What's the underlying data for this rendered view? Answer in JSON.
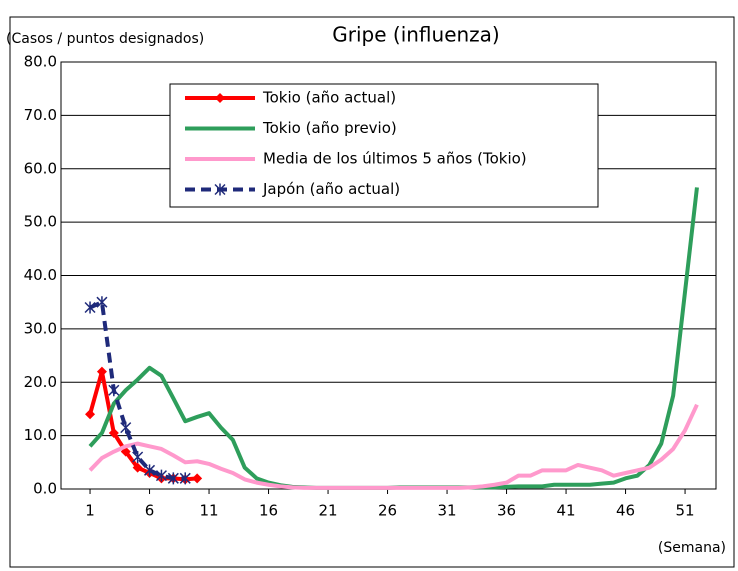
{
  "chart_data": {
    "type": "line",
    "title": "Gripe (influenza)",
    "y_label": "(Casos / puntos designados)",
    "x_label": "(Semana)",
    "x": [
      1,
      2,
      3,
      4,
      5,
      6,
      7,
      8,
      9,
      10,
      11,
      12,
      13,
      14,
      15,
      16,
      17,
      18,
      19,
      20,
      21,
      22,
      23,
      24,
      25,
      26,
      27,
      28,
      29,
      30,
      31,
      32,
      33,
      34,
      35,
      36,
      37,
      38,
      39,
      40,
      41,
      42,
      43,
      44,
      45,
      46,
      47,
      48,
      49,
      50,
      51,
      52
    ],
    "xlim": [
      -1.44,
      53.6
    ],
    "xticks": [
      1,
      6,
      11,
      16,
      21,
      26,
      31,
      36,
      41,
      46,
      51
    ],
    "ylim": [
      0,
      80
    ],
    "yticks": [
      {
        "value": 0,
        "label": "0.0"
      },
      {
        "value": 10,
        "label": "10.0"
      },
      {
        "value": 20,
        "label": "20.0"
      },
      {
        "value": 30,
        "label": "30.0"
      },
      {
        "value": 40,
        "label": "40.0"
      },
      {
        "value": 50,
        "label": "50.0"
      },
      {
        "value": 60,
        "label": "60.0"
      },
      {
        "value": 70,
        "label": "70.0"
      },
      {
        "value": 80,
        "label": "80.0"
      }
    ],
    "grid": true,
    "legend": "upper-left",
    "series": [
      {
        "name": "Tokio (año actual)",
        "color": "#ff0000",
        "marker": "diamond",
        "dash": false,
        "values": [
          14,
          22,
          10.5,
          7,
          4,
          3,
          2,
          2,
          1.8,
          2,
          null,
          null,
          null,
          null,
          null,
          null,
          null,
          null,
          null,
          null,
          null,
          null,
          null,
          null,
          null,
          null,
          null,
          null,
          null,
          null,
          null,
          null,
          null,
          null,
          null,
          null,
          null,
          null,
          null,
          null,
          null,
          null,
          null,
          null,
          null,
          null,
          null,
          null,
          null,
          null,
          null,
          null
        ]
      },
      {
        "name": "Tokio (año previo)",
        "color": "#2e9e5b",
        "marker": "none",
        "dash": false,
        "values": [
          8,
          10.5,
          16,
          18.5,
          20.5,
          22.7,
          21.2,
          17,
          12.7,
          13.5,
          14.2,
          11.5,
          9.2,
          4,
          2,
          1.2,
          0.7,
          0.4,
          0.3,
          0.2,
          0.2,
          0.2,
          0.2,
          0.2,
          0.2,
          0.2,
          0.3,
          0.3,
          0.3,
          0.3,
          0.3,
          0.3,
          0.3,
          0.3,
          0.3,
          0.4,
          0.5,
          0.5,
          0.5,
          0.8,
          0.8,
          0.8,
          0.8,
          1,
          1.2,
          2,
          2.5,
          4.5,
          8.5,
          17.5,
          37,
          56.5
        ]
      },
      {
        "name": "Media de los últimos 5 años (Tokio)",
        "color": "#ff99cc",
        "marker": "none",
        "dash": false,
        "values": [
          3.5,
          5.8,
          7,
          8,
          8.5,
          8,
          7.5,
          6.3,
          5,
          5.2,
          4.7,
          3.8,
          3,
          1.8,
          1.2,
          0.8,
          0.5,
          0.3,
          0.2,
          0.2,
          0.2,
          0.2,
          0.2,
          0.2,
          0.2,
          0.2,
          0.2,
          0.2,
          0.2,
          0.2,
          0.2,
          0.2,
          0.3,
          0.5,
          0.8,
          1.2,
          2.5,
          2.5,
          3.5,
          3.5,
          3.5,
          4.5,
          4,
          3.5,
          2.5,
          3,
          3.5,
          4,
          5.5,
          7.5,
          11,
          15.8
        ]
      },
      {
        "name": "Japón (año actual)",
        "color": "#1f2a7a",
        "marker": "star",
        "dash": true,
        "values": [
          34,
          35,
          18.5,
          11.5,
          6,
          3.5,
          2.5,
          2,
          2,
          null,
          null,
          null,
          null,
          null,
          null,
          null,
          null,
          null,
          null,
          null,
          null,
          null,
          null,
          null,
          null,
          null,
          null,
          null,
          null,
          null,
          null,
          null,
          null,
          null,
          null,
          null,
          null,
          null,
          null,
          null,
          null,
          null,
          null,
          null,
          null,
          null,
          null,
          null,
          null,
          null,
          null,
          null
        ]
      }
    ]
  }
}
